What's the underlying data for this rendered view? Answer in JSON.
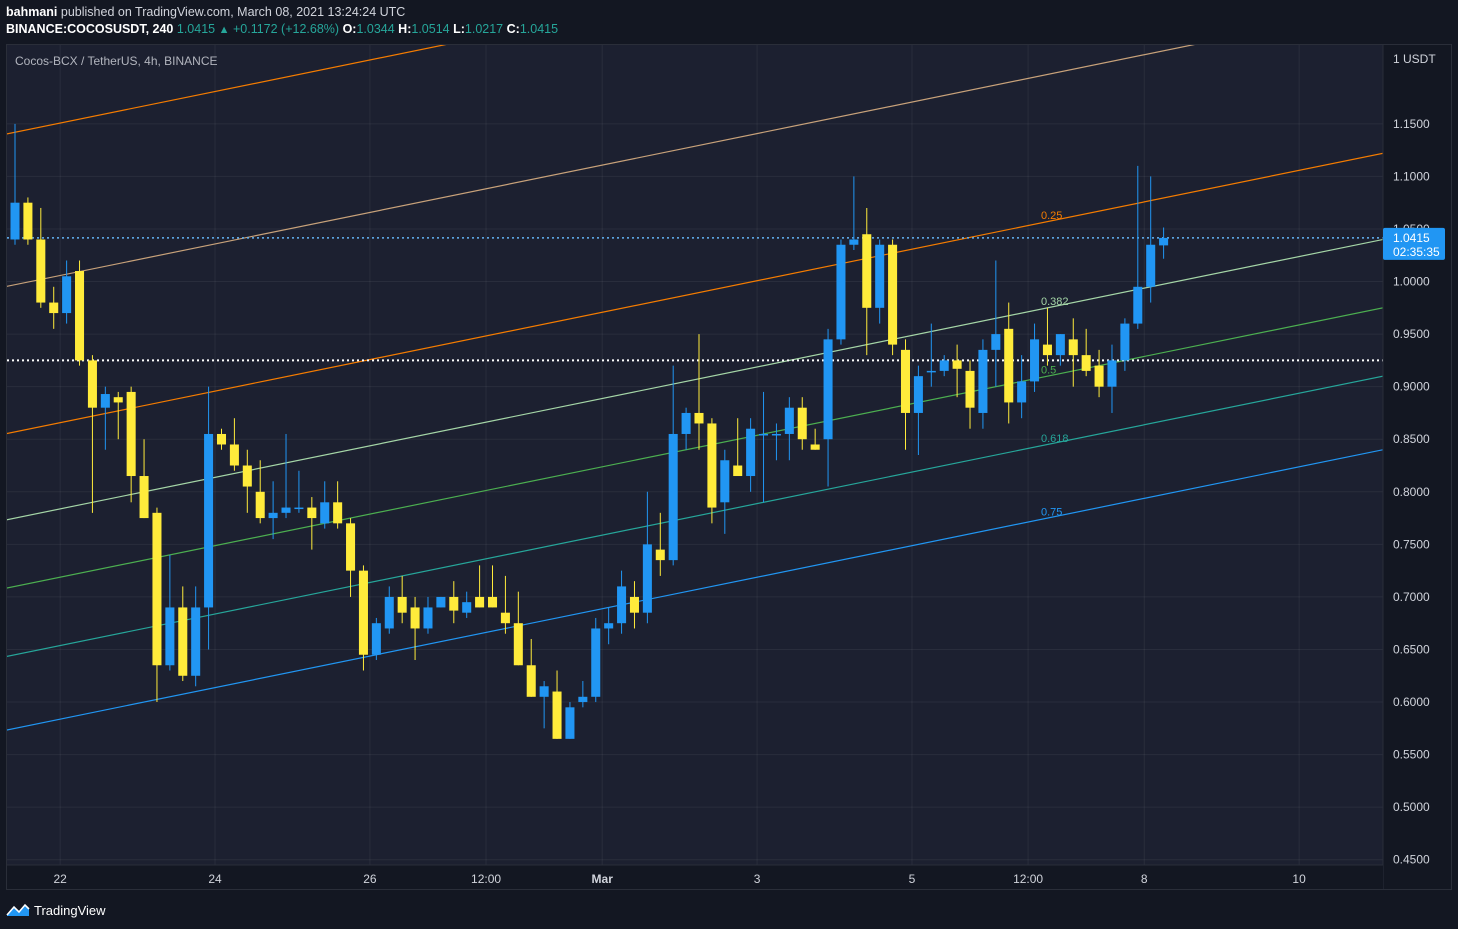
{
  "header": {
    "author": "bahmani",
    "published": "published on TradingView.com, March 08, 2021 13:24:24 UTC",
    "symbol": "BINANCE:COCOSUSDT, 240",
    "last_price": "1.0415",
    "change": "+0.1172 (+12.68%)",
    "open_label": "O:",
    "open": "1.0344",
    "high_label": "H:",
    "high": "1.0514",
    "low_label": "L:",
    "low": "1.0217",
    "close_label": "C:",
    "close": "1.0415"
  },
  "chart_title": "Cocos-BCX / TetherUS, 4h, BINANCE",
  "footer": {
    "brand": "TradingView"
  },
  "colors": {
    "bull": "#2196f3",
    "bear": "#ffeb3b",
    "background": "#131722"
  },
  "chart_data": {
    "type": "candlestick",
    "y_unit": "USDT",
    "ylim": [
      0.445,
      1.225
    ],
    "y_ticks": [
      0.45,
      0.5,
      0.55,
      0.6,
      0.65,
      0.7,
      0.75,
      0.8,
      0.85,
      0.9,
      0.95,
      1.0,
      1.05,
      1.1,
      1.15
    ],
    "y_tick_labels": [
      "0.4500",
      "0.5000",
      "0.5500",
      "0.6000",
      "0.6500",
      "0.7000",
      "0.7500",
      "0.8000",
      "0.8500",
      "0.9000",
      "0.9500",
      "1.0000",
      "1.0500",
      "1.1000",
      "1.1500"
    ],
    "y_unit_label": "1 USDT",
    "x_ticks": [
      {
        "label": "22",
        "t": 3.5
      },
      {
        "label": "24",
        "t": 15.5
      },
      {
        "label": "26",
        "t": 27.5
      },
      {
        "label": "12:00",
        "t": 36.5
      },
      {
        "label": "Mar",
        "t": 45.5
      },
      {
        "label": "3",
        "t": 57.5
      },
      {
        "label": "5",
        "t": 69.5
      },
      {
        "label": "12:00",
        "t": 78.5
      },
      {
        "label": "8",
        "t": 87.5
      },
      {
        "label": "10",
        "t": 99.5
      }
    ],
    "x_range": [
      0,
      106
    ],
    "current_price": {
      "value": "1.0415",
      "countdown": "02:35:35",
      "y": 1.0415
    },
    "horizontal_line": 0.925,
    "candles": [
      {
        "t": 0,
        "o": 1.04,
        "h": 1.15,
        "l": 1.035,
        "c": 1.075
      },
      {
        "t": 1,
        "o": 1.075,
        "h": 1.08,
        "l": 1.035,
        "c": 1.04
      },
      {
        "t": 2,
        "o": 1.04,
        "h": 1.07,
        "l": 0.975,
        "c": 0.98
      },
      {
        "t": 3,
        "o": 0.98,
        "h": 0.995,
        "l": 0.955,
        "c": 0.97
      },
      {
        "t": 4,
        "o": 0.97,
        "h": 1.02,
        "l": 0.96,
        "c": 1.005
      },
      {
        "t": 5,
        "o": 1.01,
        "h": 1.02,
        "l": 0.92,
        "c": 0.925
      },
      {
        "t": 6,
        "o": 0.925,
        "h": 0.93,
        "l": 0.78,
        "c": 0.88
      },
      {
        "t": 7,
        "o": 0.88,
        "h": 0.9,
        "l": 0.84,
        "c": 0.893
      },
      {
        "t": 8,
        "o": 0.89,
        "h": 0.895,
        "l": 0.85,
        "c": 0.885
      },
      {
        "t": 9,
        "o": 0.895,
        "h": 0.9,
        "l": 0.79,
        "c": 0.815
      },
      {
        "t": 10,
        "o": 0.815,
        "h": 0.85,
        "l": 0.775,
        "c": 0.775
      },
      {
        "t": 11,
        "o": 0.78,
        "h": 0.785,
        "l": 0.6,
        "c": 0.635
      },
      {
        "t": 12,
        "o": 0.635,
        "h": 0.74,
        "l": 0.63,
        "c": 0.69
      },
      {
        "t": 13,
        "o": 0.69,
        "h": 0.71,
        "l": 0.62,
        "c": 0.625
      },
      {
        "t": 14,
        "o": 0.625,
        "h": 0.71,
        "l": 0.615,
        "c": 0.69
      },
      {
        "t": 15,
        "o": 0.69,
        "h": 0.9,
        "l": 0.65,
        "c": 0.855
      },
      {
        "t": 16,
        "o": 0.855,
        "h": 0.86,
        "l": 0.84,
        "c": 0.845
      },
      {
        "t": 17,
        "o": 0.845,
        "h": 0.87,
        "l": 0.82,
        "c": 0.825
      },
      {
        "t": 18,
        "o": 0.825,
        "h": 0.84,
        "l": 0.78,
        "c": 0.805
      },
      {
        "t": 19,
        "o": 0.8,
        "h": 0.83,
        "l": 0.77,
        "c": 0.775
      },
      {
        "t": 20,
        "o": 0.775,
        "h": 0.81,
        "l": 0.755,
        "c": 0.78
      },
      {
        "t": 21,
        "o": 0.78,
        "h": 0.855,
        "l": 0.775,
        "c": 0.785
      },
      {
        "t": 22,
        "o": 0.785,
        "h": 0.82,
        "l": 0.78,
        "c": 0.785
      },
      {
        "t": 23,
        "o": 0.785,
        "h": 0.795,
        "l": 0.745,
        "c": 0.775
      },
      {
        "t": 24,
        "o": 0.77,
        "h": 0.81,
        "l": 0.765,
        "c": 0.79
      },
      {
        "t": 25,
        "o": 0.79,
        "h": 0.81,
        "l": 0.765,
        "c": 0.77
      },
      {
        "t": 26,
        "o": 0.77,
        "h": 0.775,
        "l": 0.7,
        "c": 0.725
      },
      {
        "t": 27,
        "o": 0.725,
        "h": 0.73,
        "l": 0.63,
        "c": 0.645
      },
      {
        "t": 28,
        "o": 0.645,
        "h": 0.68,
        "l": 0.64,
        "c": 0.675
      },
      {
        "t": 29,
        "o": 0.67,
        "h": 0.71,
        "l": 0.665,
        "c": 0.7
      },
      {
        "t": 30,
        "o": 0.7,
        "h": 0.72,
        "l": 0.675,
        "c": 0.685
      },
      {
        "t": 31,
        "o": 0.69,
        "h": 0.7,
        "l": 0.64,
        "c": 0.67
      },
      {
        "t": 32,
        "o": 0.67,
        "h": 0.7,
        "l": 0.665,
        "c": 0.69
      },
      {
        "t": 33,
        "o": 0.69,
        "h": 0.7,
        "l": 0.69,
        "c": 0.7
      },
      {
        "t": 34,
        "o": 0.7,
        "h": 0.715,
        "l": 0.675,
        "c": 0.687
      },
      {
        "t": 35,
        "o": 0.685,
        "h": 0.705,
        "l": 0.68,
        "c": 0.695
      },
      {
        "t": 36,
        "o": 0.7,
        "h": 0.73,
        "l": 0.69,
        "c": 0.69
      },
      {
        "t": 37,
        "o": 0.7,
        "h": 0.73,
        "l": 0.69,
        "c": 0.69
      },
      {
        "t": 38,
        "o": 0.685,
        "h": 0.72,
        "l": 0.665,
        "c": 0.675
      },
      {
        "t": 39,
        "o": 0.675,
        "h": 0.705,
        "l": 0.635,
        "c": 0.635
      },
      {
        "t": 40,
        "o": 0.635,
        "h": 0.66,
        "l": 0.605,
        "c": 0.605
      },
      {
        "t": 41,
        "o": 0.605,
        "h": 0.62,
        "l": 0.575,
        "c": 0.615
      },
      {
        "t": 42,
        "o": 0.61,
        "h": 0.63,
        "l": 0.565,
        "c": 0.565
      },
      {
        "t": 43,
        "o": 0.565,
        "h": 0.6,
        "l": 0.565,
        "c": 0.595
      },
      {
        "t": 44,
        "o": 0.6,
        "h": 0.62,
        "l": 0.595,
        "c": 0.605
      },
      {
        "t": 45,
        "o": 0.605,
        "h": 0.68,
        "l": 0.6,
        "c": 0.67
      },
      {
        "t": 46,
        "o": 0.67,
        "h": 0.69,
        "l": 0.655,
        "c": 0.675
      },
      {
        "t": 47,
        "o": 0.675,
        "h": 0.725,
        "l": 0.665,
        "c": 0.71
      },
      {
        "t": 48,
        "o": 0.7,
        "h": 0.715,
        "l": 0.67,
        "c": 0.685
      },
      {
        "t": 49,
        "o": 0.685,
        "h": 0.8,
        "l": 0.675,
        "c": 0.75
      },
      {
        "t": 50,
        "o": 0.745,
        "h": 0.78,
        "l": 0.72,
        "c": 0.735
      },
      {
        "t": 51,
        "o": 0.735,
        "h": 0.92,
        "l": 0.73,
        "c": 0.855
      },
      {
        "t": 52,
        "o": 0.855,
        "h": 0.88,
        "l": 0.84,
        "c": 0.875
      },
      {
        "t": 53,
        "o": 0.875,
        "h": 0.95,
        "l": 0.84,
        "c": 0.865
      },
      {
        "t": 54,
        "o": 0.865,
        "h": 0.87,
        "l": 0.77,
        "c": 0.785
      },
      {
        "t": 55,
        "o": 0.79,
        "h": 0.84,
        "l": 0.76,
        "c": 0.83
      },
      {
        "t": 56,
        "o": 0.825,
        "h": 0.87,
        "l": 0.82,
        "c": 0.815
      },
      {
        "t": 57,
        "o": 0.815,
        "h": 0.87,
        "l": 0.8,
        "c": 0.86
      },
      {
        "t": 58,
        "o": 0.855,
        "h": 0.895,
        "l": 0.79,
        "c": 0.855
      },
      {
        "t": 59,
        "o": 0.855,
        "h": 0.865,
        "l": 0.83,
        "c": 0.855
      },
      {
        "t": 60,
        "o": 0.855,
        "h": 0.89,
        "l": 0.83,
        "c": 0.88
      },
      {
        "t": 61,
        "o": 0.88,
        "h": 0.89,
        "l": 0.84,
        "c": 0.85
      },
      {
        "t": 62,
        "o": 0.845,
        "h": 0.86,
        "l": 0.84,
        "c": 0.84
      },
      {
        "t": 63,
        "o": 0.85,
        "h": 0.955,
        "l": 0.805,
        "c": 0.945
      },
      {
        "t": 64,
        "o": 0.945,
        "h": 1.04,
        "l": 0.94,
        "c": 1.035
      },
      {
        "t": 65,
        "o": 1.035,
        "h": 1.1,
        "l": 1.03,
        "c": 1.04
      },
      {
        "t": 66,
        "o": 1.045,
        "h": 1.07,
        "l": 0.93,
        "c": 0.975
      },
      {
        "t": 67,
        "o": 0.975,
        "h": 1.04,
        "l": 0.96,
        "c": 1.035
      },
      {
        "t": 68,
        "o": 1.035,
        "h": 1.04,
        "l": 0.93,
        "c": 0.94
      },
      {
        "t": 69,
        "o": 0.935,
        "h": 0.945,
        "l": 0.84,
        "c": 0.875
      },
      {
        "t": 70,
        "o": 0.875,
        "h": 0.92,
        "l": 0.835,
        "c": 0.91
      },
      {
        "t": 71,
        "o": 0.915,
        "h": 0.96,
        "l": 0.9,
        "c": 0.915
      },
      {
        "t": 72,
        "o": 0.915,
        "h": 0.93,
        "l": 0.91,
        "c": 0.925
      },
      {
        "t": 73,
        "o": 0.925,
        "h": 0.94,
        "l": 0.89,
        "c": 0.917
      },
      {
        "t": 74,
        "o": 0.915,
        "h": 0.925,
        "l": 0.86,
        "c": 0.88
      },
      {
        "t": 75,
        "o": 0.875,
        "h": 0.945,
        "l": 0.86,
        "c": 0.935
      },
      {
        "t": 76,
        "o": 0.935,
        "h": 1.02,
        "l": 0.9,
        "c": 0.95
      },
      {
        "t": 77,
        "o": 0.955,
        "h": 0.98,
        "l": 0.865,
        "c": 0.885
      },
      {
        "t": 78,
        "o": 0.885,
        "h": 0.93,
        "l": 0.87,
        "c": 0.905
      },
      {
        "t": 79,
        "o": 0.905,
        "h": 0.96,
        "l": 0.895,
        "c": 0.945
      },
      {
        "t": 80,
        "o": 0.94,
        "h": 0.975,
        "l": 0.92,
        "c": 0.93
      },
      {
        "t": 81,
        "o": 0.93,
        "h": 0.95,
        "l": 0.92,
        "c": 0.95
      },
      {
        "t": 82,
        "o": 0.945,
        "h": 0.965,
        "l": 0.9,
        "c": 0.93
      },
      {
        "t": 83,
        "o": 0.93,
        "h": 0.955,
        "l": 0.91,
        "c": 0.915
      },
      {
        "t": 84,
        "o": 0.92,
        "h": 0.935,
        "l": 0.89,
        "c": 0.9
      },
      {
        "t": 85,
        "o": 0.9,
        "h": 0.94,
        "l": 0.875,
        "c": 0.925
      },
      {
        "t": 86,
        "o": 0.925,
        "h": 0.965,
        "l": 0.915,
        "c": 0.96
      },
      {
        "t": 87,
        "o": 0.96,
        "h": 1.11,
        "l": 0.955,
        "c": 0.995
      },
      {
        "t": 88,
        "o": 0.995,
        "h": 1.1,
        "l": 0.98,
        "c": 1.035
      },
      {
        "t": 89,
        "o": 1.0344,
        "h": 1.0514,
        "l": 1.0217,
        "c": 1.0415
      }
    ],
    "fib_channel": {
      "slope_per_bar": 0.0025,
      "anchor_t": 0,
      "levels": [
        {
          "label": "",
          "value": 1.142,
          "color": "#f57c00"
        },
        {
          "label": "",
          "value": 0.997,
          "color": "#c8a27a"
        },
        {
          "label": "0.25",
          "value": 0.857,
          "color": "#f57c00"
        },
        {
          "label": "0.382",
          "value": 0.775,
          "color": "#a5d6a7"
        },
        {
          "label": "0.5",
          "value": 0.71,
          "color": "#4caf50"
        },
        {
          "label": "0.618",
          "value": 0.645,
          "color": "#26a69a"
        },
        {
          "label": "0.75",
          "value": 0.575,
          "color": "#2196f3"
        }
      ],
      "label_t": 79.5
    }
  }
}
